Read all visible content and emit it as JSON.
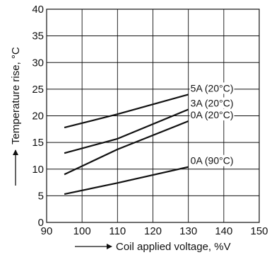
{
  "chart_data": {
    "type": "line",
    "title": "",
    "xlabel": "Coil applied voltage, %V",
    "ylabel": "Temperature rise, °C",
    "xlim": [
      90,
      150
    ],
    "ylim": [
      0,
      40
    ],
    "x_ticks": [
      90,
      100,
      110,
      120,
      130,
      140,
      150
    ],
    "y_ticks": [
      0,
      5,
      10,
      15,
      20,
      25,
      30,
      35,
      40
    ],
    "grid": true,
    "legend": "none (series labeled inline at line ends)",
    "series": [
      {
        "name": "5A (20°C)",
        "x": [
          95,
          110,
          130
        ],
        "y": [
          17.8,
          20.3,
          24.0
        ]
      },
      {
        "name": "3A (20°C)",
        "x": [
          95,
          110,
          130
        ],
        "y": [
          13.0,
          15.7,
          21.2
        ]
      },
      {
        "name": "0A (20°C)",
        "x": [
          95,
          110,
          130
        ],
        "y": [
          9.0,
          13.7,
          19.0
        ]
      },
      {
        "name": "0A (90°C)",
        "x": [
          95,
          110,
          130
        ],
        "y": [
          5.3,
          7.4,
          10.4
        ]
      }
    ]
  }
}
